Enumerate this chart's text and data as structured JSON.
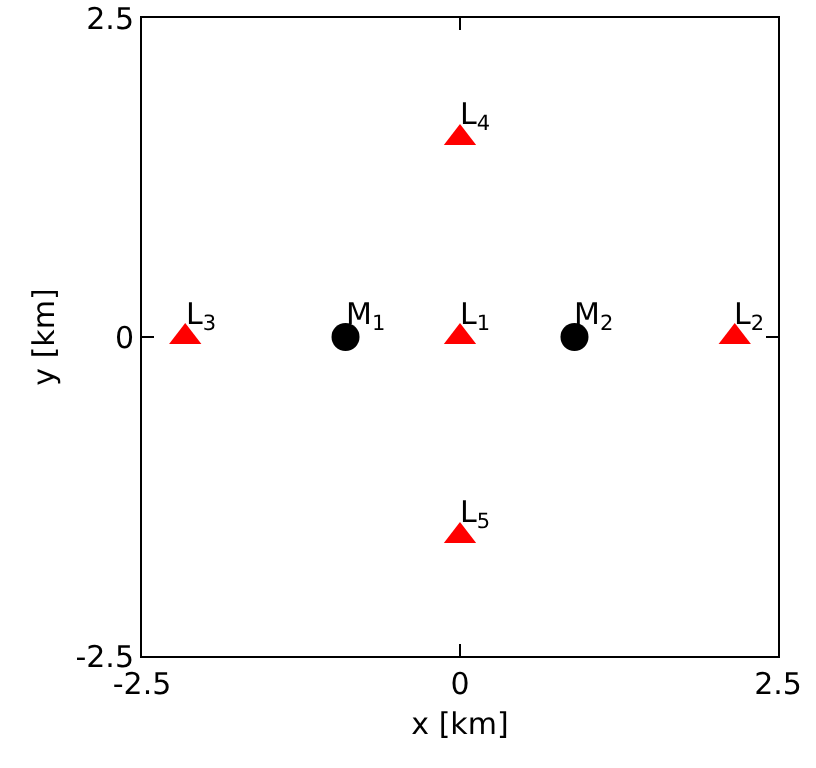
{
  "chart_data": {
    "type": "scatter",
    "xlabel": "x [km]",
    "ylabel": "y [km]",
    "xlim": [
      -2.5,
      2.5
    ],
    "ylim": [
      -2.5,
      2.5
    ],
    "xticks": [
      -2.5,
      0,
      2.5
    ],
    "yticks": [
      -2.5,
      0,
      2.5
    ],
    "grid": false,
    "series": [
      {
        "color": "#ff0000",
        "marker": "triangle",
        "x": [
          0,
          2.16,
          -2.16,
          0,
          0
        ],
        "values": [
          0,
          0,
          0,
          1.56,
          -1.56
        ]
      },
      {
        "color": "#000000",
        "marker": "circle",
        "x": [
          -0.9,
          0.9
        ],
        "values": [
          0,
          0
        ]
      }
    ],
    "annotations": [
      {
        "text": "L$_{1}$",
        "x": 0,
        "y": 0
      },
      {
        "text": "L$_{2}$",
        "x": 2.16,
        "y": 0
      },
      {
        "text": "L$_{3}$",
        "x": -2.16,
        "y": 0
      },
      {
        "text": "L$_{4}$",
        "x": 0,
        "y": 1.56
      },
      {
        "text": "L$_{5}$",
        "x": 0,
        "y": -1.56
      },
      {
        "text": "M$_{1}$",
        "x": -0.9,
        "y": 0
      },
      {
        "text": "M$_{2}$",
        "x": 0.9,
        "y": 0
      }
    ]
  }
}
